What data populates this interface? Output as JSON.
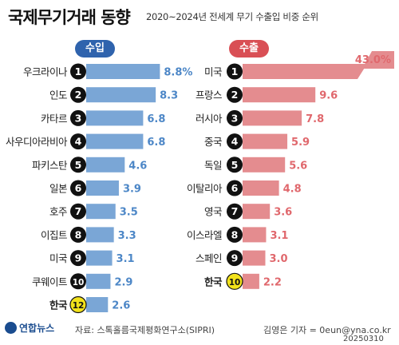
{
  "header": {
    "title": "국제무기거래 동향",
    "subtitle": "2020~2024년 전세계 무기 수출입 비중 순위"
  },
  "footer": {
    "logo": "연합뉴스",
    "source": "자료: 스톡홀름국제평화연구소(SIPRI)",
    "byline": "김영은 기자 = 0eun@yna.co.kr",
    "date": "20250310"
  },
  "colors": {
    "import_bar": "#7aa6d6",
    "import_value": "#4d87c7",
    "import_pill": "#2f63ad",
    "export_bar": "#e48c8f",
    "export_value": "#e0686d",
    "export_pill": "#d94f55",
    "korea_badge": "#f2e21b"
  },
  "chart_data": [
    {
      "type": "bar",
      "name": "수입",
      "unit": "%",
      "categories": [
        "우크라이나",
        "인도",
        "카타르",
        "사우디아라비아",
        "파키스탄",
        "일본",
        "호주",
        "이집트",
        "미국",
        "쿠웨이트",
        "한국"
      ],
      "ranks": [
        "1",
        "2",
        "3",
        "4",
        "5",
        "6",
        "7",
        "8",
        "9",
        "10",
        "12"
      ],
      "values": [
        8.8,
        8.3,
        6.8,
        6.8,
        4.6,
        3.9,
        3.5,
        3.3,
        3.1,
        2.9,
        2.6
      ],
      "value_labels": [
        "8.8%",
        "8.3",
        "6.8",
        "6.8",
        "4.6",
        "3.9",
        "3.5",
        "3.3",
        "3.1",
        "2.9",
        "2.6"
      ],
      "highlight": "한국"
    },
    {
      "type": "bar",
      "name": "수출",
      "unit": "%",
      "categories": [
        "미국",
        "프랑스",
        "러시아",
        "중국",
        "독일",
        "이탈리아",
        "영국",
        "이스라엘",
        "스페인",
        "한국"
      ],
      "ranks": [
        "1",
        "2",
        "3",
        "4",
        "5",
        "6",
        "7",
        "8",
        "9",
        "10"
      ],
      "values": [
        43.0,
        9.6,
        7.8,
        5.9,
        5.6,
        4.8,
        3.6,
        3.1,
        3.0,
        2.2
      ],
      "value_labels": [
        "43.0%",
        "9.6",
        "7.8",
        "5.9",
        "5.6",
        "4.8",
        "3.6",
        "3.1",
        "3.0",
        "2.2"
      ],
      "highlight": "한국"
    }
  ]
}
